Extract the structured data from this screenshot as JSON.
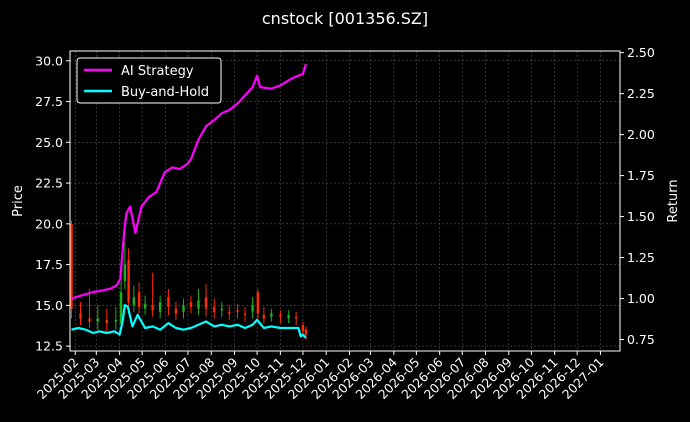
{
  "chart_data": {
    "type": "line",
    "title": "cnstock [001356.SZ]",
    "ylabel_left": "Price",
    "ylabel_right": "Return",
    "grid": true,
    "legend_position": "upper-left",
    "ylim_left": [
      12.2,
      30.6
    ],
    "ylim_right": [
      0.68,
      2.51
    ],
    "left_ticks": [
      "12.5",
      "15.0",
      "17.5",
      "20.0",
      "22.5",
      "25.0",
      "27.5",
      "30.0"
    ],
    "right_ticks": [
      "0.75",
      "1.00",
      "1.25",
      "1.50",
      "1.75",
      "2.00",
      "2.25",
      "2.50"
    ],
    "x_ticks": [
      "2025-02",
      "2025-03",
      "2025-04",
      "2025-05",
      "2025-06",
      "2025-07",
      "2025-08",
      "2025-09",
      "2025-10",
      "2025-11",
      "2025-12",
      "2026-01",
      "2026-02",
      "2026-03",
      "2026-04",
      "2026-05",
      "2026-06",
      "2026-07",
      "2026-08",
      "2026-09",
      "2026-10",
      "2026-11",
      "2026-12",
      "2027-01"
    ],
    "x_range": [
      "2025-01-25",
      "2027-01-27"
    ],
    "series": [
      {
        "name": "AI Strategy",
        "axis": "right",
        "color": "#ff00ff",
        "dates": [
          "2025-01-27",
          "2025-02-10",
          "2025-02-25",
          "2025-03-10",
          "2025-03-20",
          "2025-03-28",
          "2025-04-02",
          "2025-04-07",
          "2025-04-10",
          "2025-04-15",
          "2025-04-22",
          "2025-04-30",
          "2025-05-10",
          "2025-05-20",
          "2025-05-31",
          "2025-06-10",
          "2025-06-20",
          "2025-06-30",
          "2025-07-05",
          "2025-07-15",
          "2025-07-25",
          "2025-08-05",
          "2025-08-15",
          "2025-08-25",
          "2025-09-05",
          "2025-09-15",
          "2025-09-25",
          "2025-10-01",
          "2025-10-05",
          "2025-10-20",
          "2025-11-01",
          "2025-11-15",
          "2025-11-25",
          "2025-12-01",
          "2025-12-05"
        ],
        "values": [
          1.0,
          1.02,
          1.04,
          1.05,
          1.06,
          1.08,
          1.12,
          1.4,
          1.52,
          1.56,
          1.4,
          1.56,
          1.62,
          1.65,
          1.77,
          1.8,
          1.79,
          1.82,
          1.85,
          1.97,
          2.05,
          2.09,
          2.13,
          2.15,
          2.19,
          2.24,
          2.29,
          2.36,
          2.29,
          2.28,
          2.3,
          2.34,
          2.36,
          2.37,
          2.43
        ]
      },
      {
        "name": "Buy-and-Hold",
        "axis": "right",
        "color": "#00ffff",
        "dates": [
          "2025-01-27",
          "2025-02-05",
          "2025-02-15",
          "2025-02-25",
          "2025-03-05",
          "2025-03-15",
          "2025-03-25",
          "2025-04-01",
          "2025-04-05",
          "2025-04-08",
          "2025-04-12",
          "2025-04-18",
          "2025-04-25",
          "2025-05-05",
          "2025-05-15",
          "2025-05-25",
          "2025-06-05",
          "2025-06-15",
          "2025-06-25",
          "2025-07-05",
          "2025-07-15",
          "2025-07-25",
          "2025-08-05",
          "2025-08-15",
          "2025-08-25",
          "2025-09-05",
          "2025-09-15",
          "2025-09-25",
          "2025-10-01",
          "2025-10-10",
          "2025-10-20",
          "2025-11-01",
          "2025-11-15",
          "2025-11-25",
          "2025-11-28",
          "2025-12-01",
          "2025-12-05"
        ],
        "values": [
          0.81,
          0.82,
          0.81,
          0.79,
          0.8,
          0.79,
          0.8,
          0.78,
          0.86,
          0.96,
          0.95,
          0.83,
          0.9,
          0.82,
          0.83,
          0.81,
          0.85,
          0.82,
          0.81,
          0.82,
          0.84,
          0.86,
          0.83,
          0.84,
          0.83,
          0.84,
          0.82,
          0.84,
          0.87,
          0.82,
          0.83,
          0.82,
          0.82,
          0.82,
          0.77,
          0.78,
          0.76
        ]
      }
    ],
    "price_bars": {
      "dates": [
        "2025-01-27",
        "2025-02-08",
        "2025-02-20",
        "2025-03-03",
        "2025-03-15",
        "2025-03-27",
        "2025-04-03",
        "2025-04-08",
        "2025-04-13",
        "2025-04-20",
        "2025-04-27",
        "2025-05-05",
        "2025-05-15",
        "2025-05-25",
        "2025-06-05",
        "2025-06-15",
        "2025-06-25",
        "2025-07-05",
        "2025-07-15",
        "2025-07-25",
        "2025-08-05",
        "2025-08-15",
        "2025-08-25",
        "2025-09-05",
        "2025-09-15",
        "2025-09-25",
        "2025-10-02",
        "2025-10-10",
        "2025-10-20",
        "2025-11-01",
        "2025-11-12",
        "2025-11-22",
        "2025-12-01",
        "2025-12-05"
      ],
      "open": [
        20.0,
        14.5,
        14.2,
        14.0,
        14.1,
        14.0,
        13.9,
        16.5,
        17.8,
        15.0,
        15.8,
        14.8,
        15.0,
        14.6,
        15.5,
        14.8,
        14.6,
        15.2,
        14.8,
        15.5,
        14.9,
        14.7,
        14.6,
        14.7,
        14.5,
        14.6,
        15.8,
        14.4,
        14.3,
        14.4,
        14.2,
        14.3,
        13.8,
        13.5
      ],
      "close": [
        14.8,
        14.2,
        14.0,
        14.2,
        13.9,
        14.1,
        15.8,
        17.5,
        15.2,
        15.5,
        14.9,
        15.1,
        14.7,
        15.2,
        14.9,
        14.5,
        15.0,
        14.9,
        15.3,
        14.8,
        14.6,
        14.8,
        14.5,
        14.6,
        14.4,
        15.0,
        14.5,
        14.2,
        14.5,
        14.3,
        14.4,
        14.2,
        13.4,
        13.2
      ],
      "high": [
        20.2,
        15.2,
        16.0,
        15.0,
        14.8,
        14.9,
        16.5,
        18.9,
        18.5,
        16.2,
        16.4,
        15.6,
        17.0,
        15.6,
        16.0,
        15.2,
        15.4,
        15.6,
        16.0,
        16.3,
        15.4,
        15.2,
        15.0,
        15.1,
        14.9,
        15.5,
        16.0,
        14.9,
        14.8,
        14.7,
        14.7,
        14.6,
        14.0,
        13.7
      ],
      "low": [
        14.2,
        13.8,
        13.6,
        13.5,
        13.4,
        13.5,
        13.7,
        16.0,
        14.5,
        14.6,
        14.5,
        14.4,
        14.3,
        14.2,
        14.4,
        14.1,
        14.2,
        14.5,
        14.4,
        14.3,
        14.2,
        14.3,
        14.1,
        14.2,
        14.0,
        14.2,
        14.1,
        13.9,
        14.0,
        13.9,
        13.9,
        13.8,
        13.2,
        12.9
      ],
      "up_color": "#1fae1f",
      "down_color": "#ff2a00"
    }
  }
}
